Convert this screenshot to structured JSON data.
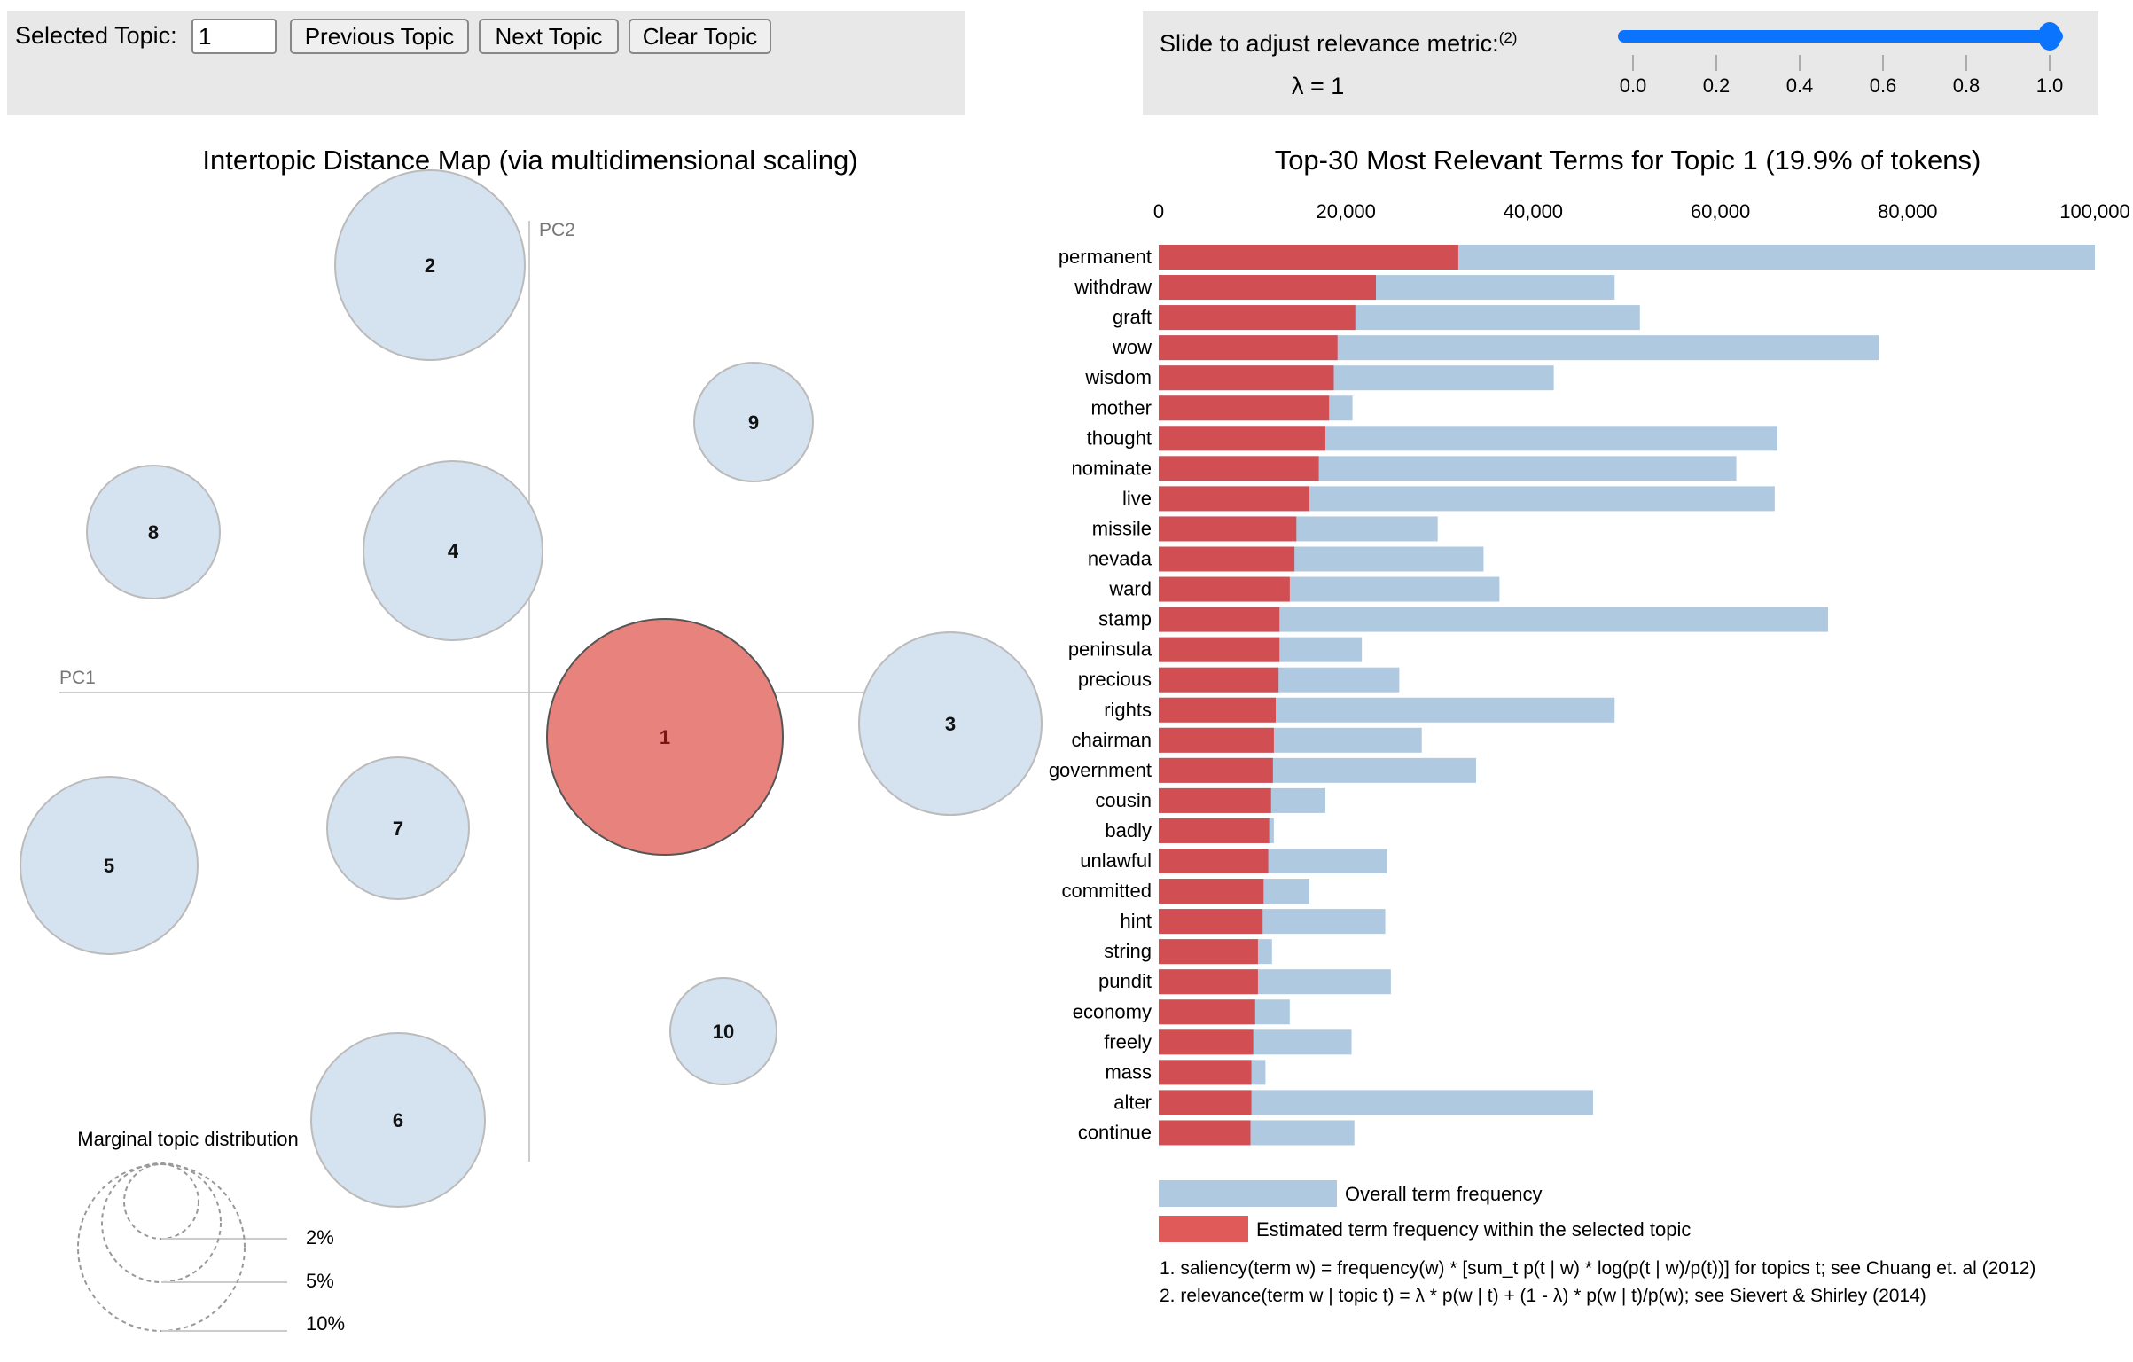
{
  "controls": {
    "selected_topic_label": "Selected Topic:",
    "selected_topic_value": "1",
    "previous_label": "Previous Topic",
    "next_label": "Next Topic",
    "clear_label": "Clear Topic"
  },
  "slider": {
    "label": "Slide to adjust relevance metric:",
    "footnote_ref": "(2)",
    "lambda_text": "λ = 1",
    "value": 1.0,
    "ticks": [
      "0.0",
      "0.2",
      "0.4",
      "0.6",
      "0.8",
      "1.0"
    ],
    "color": "#0a74ff"
  },
  "chart_data": [
    {
      "type": "scatter",
      "title": "Intertopic Distance Map (via multidimensional scaling)",
      "xlabel": "PC1",
      "ylabel": "PC2",
      "selected_topic": 1,
      "topics": [
        {
          "id": "1",
          "selected": true
        },
        {
          "id": "2"
        },
        {
          "id": "3"
        },
        {
          "id": "4"
        },
        {
          "id": "5"
        },
        {
          "id": "6"
        },
        {
          "id": "7"
        },
        {
          "id": "8"
        },
        {
          "id": "9"
        },
        {
          "id": "10"
        }
      ],
      "legend": {
        "title": "Marginal topic distribution",
        "labels": [
          "2%",
          "5%",
          "10%"
        ]
      },
      "colors": {
        "topic": "#d5e2ef",
        "selected": "#e8827c"
      }
    },
    {
      "type": "bar",
      "orientation": "horizontal",
      "stacked_overlay": true,
      "title": "Top-30 Most Relevant Terms for Topic 1 (19.9% of tokens)",
      "xlim": [
        0,
        100000
      ],
      "xticks": [
        "0",
        "20,000",
        "40,000",
        "60,000",
        "80,000",
        "100,000"
      ],
      "xtick_values": [
        0,
        20000,
        40000,
        60000,
        80000,
        100000
      ],
      "categories": [
        "permanent",
        "withdraw",
        "graft",
        "wow",
        "wisdom",
        "mother",
        "thought",
        "nominate",
        "live",
        "missile",
        "nevada",
        "ward",
        "stamp",
        "peninsula",
        "precious",
        "rights",
        "chairman",
        "government",
        "cousin",
        "badly",
        "unlawful",
        "committed",
        "hint",
        "string",
        "pundit",
        "economy",
        "freely",
        "mass",
        "alter",
        "continue"
      ],
      "series": [
        {
          "name": "Overall term frequency",
          "color": "#afc9e0",
          "values": [
            100000,
            48700,
            51400,
            76900,
            42200,
            20700,
            66100,
            61700,
            65800,
            29800,
            34700,
            36400,
            71500,
            21700,
            25700,
            48700,
            28100,
            33900,
            17800,
            12300,
            24400,
            16100,
            24200,
            12100,
            24800,
            14000,
            20600,
            11400,
            46400,
            20900
          ]
        },
        {
          "name": "Estimated term frequency within the selected topic",
          "color": "#d14e53",
          "values": [
            32000,
            23200,
            21000,
            19100,
            18700,
            18200,
            17800,
            17100,
            16100,
            14700,
            14500,
            14000,
            12900,
            12900,
            12800,
            12500,
            12300,
            12200,
            12000,
            11800,
            11700,
            11200,
            11100,
            10600,
            10600,
            10300,
            10100,
            9900,
            9900,
            9800
          ]
        }
      ],
      "footnotes": [
        "1. saliency(term w) = frequency(w) * [sum_t p(t | w) * log(p(t | w)/p(t))] for topics t; see Chuang et. al (2012)",
        "2. relevance(term w | topic t) = λ * p(w | t) + (1 - λ) * p(w | t)/p(w); see Sievert & Shirley (2014)"
      ]
    }
  ]
}
